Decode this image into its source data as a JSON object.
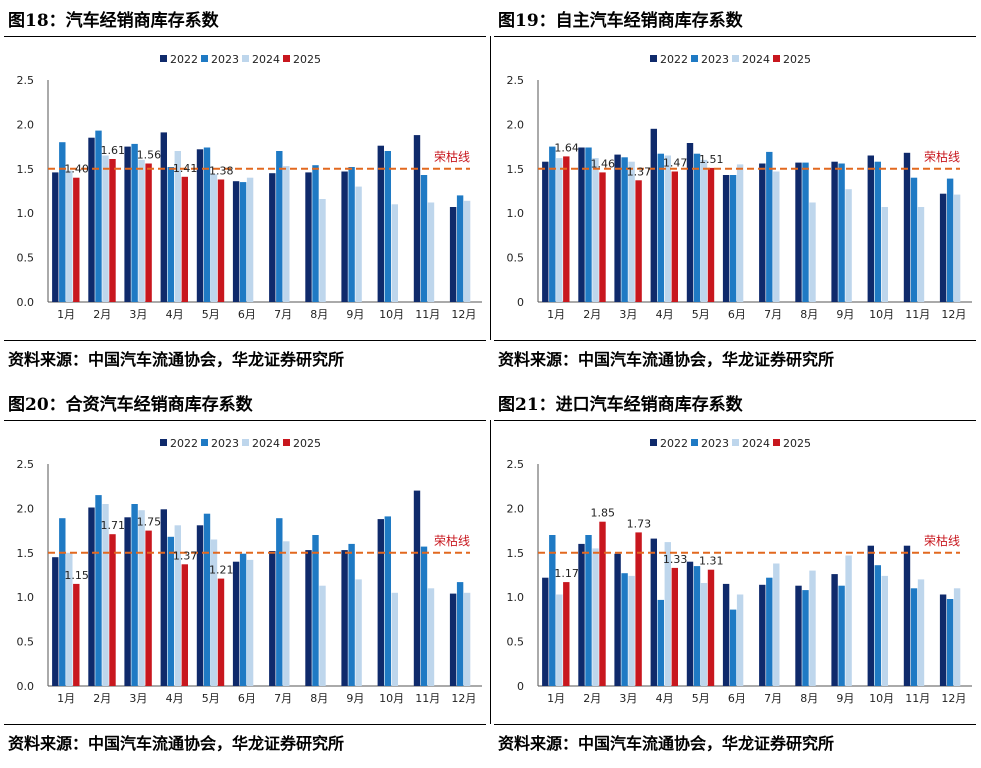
{
  "colors": {
    "2022": "#0f2a6b",
    "2023": "#1f7ac4",
    "2024": "#bed6ec",
    "2025": "#c8171e",
    "warning_line": "#e2681f"
  },
  "charts": [
    {
      "title": "图18：汽车经销商库存系数",
      "source": "资料来源：中国汽车流通协会，华龙证券研究所",
      "chart_data": {
        "type": "bar",
        "categories": [
          "1月",
          "2月",
          "3月",
          "4月",
          "5月",
          "6月",
          "7月",
          "8月",
          "9月",
          "10月",
          "11月",
          "12月"
        ],
        "ylim": [
          0,
          2.5
        ],
        "yticks": [
          "0.0",
          "0.5",
          "1.0",
          "1.5",
          "2.0",
          "2.5"
        ],
        "series": [
          {
            "name": "2022",
            "values": [
              1.46,
              1.85,
              1.75,
              1.91,
              1.72,
              1.36,
              1.45,
              1.46,
              1.47,
              1.76,
              1.88,
              1.07
            ]
          },
          {
            "name": "2023",
            "values": [
              1.8,
              1.93,
              1.78,
              1.52,
              1.74,
              1.35,
              1.7,
              1.54,
              1.52,
              1.7,
              1.43,
              1.2
            ]
          },
          {
            "name": "2024",
            "values": [
              1.48,
              1.65,
              1.6,
              1.7,
              1.44,
              1.4,
              1.53,
              1.16,
              1.3,
              1.1,
              1.12,
              1.14
            ]
          },
          {
            "name": "2025",
            "values": [
              1.4,
              1.61,
              1.56,
              1.41,
              1.38,
              null,
              null,
              null,
              null,
              null,
              null,
              null
            ]
          }
        ],
        "data_labels": [
          "1.40",
          "1.61",
          "1.56",
          "1.41",
          "1.38"
        ],
        "reference_line": {
          "value": 1.5,
          "label": "荣枯线"
        },
        "legend": "top"
      }
    },
    {
      "title": "图19：自主汽车经销商库存系数",
      "source": "资料来源：中国汽车流通协会，华龙证券研究所",
      "chart_data": {
        "type": "bar",
        "categories": [
          "1月",
          "2月",
          "3月",
          "4月",
          "5月",
          "6月",
          "7月",
          "8月",
          "9月",
          "10月",
          "11月",
          "12月"
        ],
        "ylim": [
          0,
          2.5
        ],
        "yticks": [
          "0",
          "0.5",
          "1.0",
          "1.5",
          "2.0",
          "2.5"
        ],
        "series": [
          {
            "name": "2022",
            "values": [
              1.58,
              1.74,
              1.66,
              1.95,
              1.79,
              1.43,
              1.56,
              1.57,
              1.58,
              1.65,
              1.68,
              1.22
            ]
          },
          {
            "name": "2023",
            "values": [
              1.75,
              1.74,
              1.63,
              1.67,
              1.67,
              1.43,
              1.69,
              1.57,
              1.56,
              1.58,
              1.4,
              1.39
            ]
          },
          {
            "name": "2024",
            "values": [
              1.62,
              1.62,
              1.58,
              1.65,
              1.6,
              1.55,
              1.47,
              1.12,
              1.27,
              1.07,
              1.07,
              1.21
            ]
          },
          {
            "name": "2025",
            "values": [
              1.64,
              1.46,
              1.37,
              1.47,
              1.51,
              null,
              null,
              null,
              null,
              null,
              null,
              null
            ]
          }
        ],
        "data_labels": [
          "1.64",
          "1.46",
          "1.37",
          "1.47",
          "1.51"
        ],
        "reference_line": {
          "value": 1.5,
          "label": "荣枯线"
        },
        "legend": "top"
      }
    },
    {
      "title": "图20：合资汽车经销商库存系数",
      "source": "资料来源：中国汽车流通协会，华龙证券研究所",
      "chart_data": {
        "type": "bar",
        "categories": [
          "1月",
          "2月",
          "3月",
          "4月",
          "5月",
          "6月",
          "7月",
          "8月",
          "9月",
          "10月",
          "11月",
          "12月"
        ],
        "ylim": [
          0,
          2.5
        ],
        "yticks": [
          "0.0",
          "0.5",
          "1.0",
          "1.5",
          "2.0",
          "2.5"
        ],
        "series": [
          {
            "name": "2022",
            "values": [
              1.45,
              2.01,
              1.9,
              1.99,
              1.81,
              1.4,
              1.52,
              1.53,
              1.53,
              1.88,
              2.2,
              1.04
            ]
          },
          {
            "name": "2023",
            "values": [
              1.89,
              2.15,
              2.05,
              1.68,
              1.94,
              1.49,
              1.89,
              1.7,
              1.6,
              1.91,
              1.57,
              1.17
            ]
          },
          {
            "name": "2024",
            "values": [
              1.5,
              2.05,
              1.98,
              1.81,
              1.65,
              1.42,
              1.63,
              1.13,
              1.2,
              1.05,
              1.1,
              1.05
            ]
          },
          {
            "name": "2025",
            "values": [
              1.15,
              1.71,
              1.75,
              1.37,
              1.21,
              null,
              null,
              null,
              null,
              null,
              null,
              null
            ]
          }
        ],
        "data_labels": [
          "1.15",
          "1.71",
          "1.75",
          "1.37",
          "1.21"
        ],
        "reference_line": {
          "value": 1.5,
          "label": "荣枯线"
        },
        "legend": "top"
      }
    },
    {
      "title": "图21：进口汽车经销商库存系数",
      "source": "资料来源：中国汽车流通协会，华龙证券研究所",
      "chart_data": {
        "type": "bar",
        "categories": [
          "1月",
          "2月",
          "3月",
          "4月",
          "5月",
          "6月",
          "7月",
          "8月",
          "9月",
          "10月",
          "11月",
          "12月"
        ],
        "ylim": [
          0,
          2.5
        ],
        "yticks": [
          "0",
          "0.5",
          "1.0",
          "1.5",
          "2.0",
          "2.5"
        ],
        "series": [
          {
            "name": "2022",
            "values": [
              1.22,
              1.6,
              1.49,
              1.66,
              1.4,
              1.15,
              1.14,
              1.13,
              1.26,
              1.58,
              1.58,
              1.03
            ]
          },
          {
            "name": "2023",
            "values": [
              1.7,
              1.7,
              1.27,
              0.97,
              1.35,
              0.86,
              1.22,
              1.08,
              1.13,
              1.36,
              1.1,
              0.98
            ]
          },
          {
            "name": "2024",
            "values": [
              1.03,
              1.55,
              1.24,
              1.62,
              1.16,
              1.03,
              1.38,
              1.3,
              1.47,
              1.24,
              1.2,
              1.1
            ]
          },
          {
            "name": "2025",
            "values": [
              1.17,
              1.85,
              1.73,
              1.33,
              1.31,
              null,
              null,
              null,
              null,
              null,
              null,
              null
            ]
          }
        ],
        "data_labels": [
          "1.17",
          "1.85",
          "1.73",
          "1.33",
          "1.31"
        ],
        "reference_line": {
          "value": 1.5,
          "label": "荣枯线"
        },
        "legend": "top"
      }
    }
  ]
}
